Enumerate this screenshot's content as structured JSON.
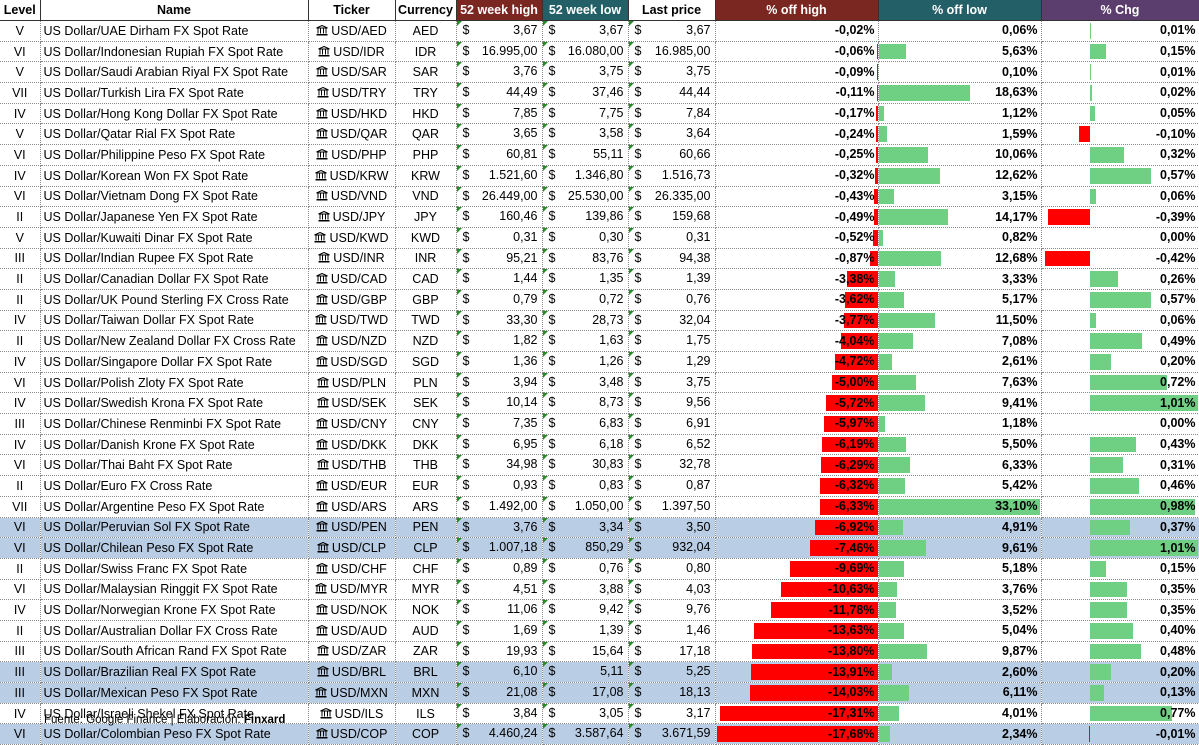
{
  "headers": {
    "level": "Level",
    "name": "Name",
    "ticker": "Ticker",
    "currency": "Currency",
    "high": "52 week high",
    "low": "52 week low",
    "last": "Last price",
    "off_high": "% off high",
    "off_low": "% off low",
    "chg": "% Chg"
  },
  "currency_symbol": "$",
  "ticker_icon": "bank-building-icon",
  "colors": {
    "negative": "#ff0000",
    "positive": "#6fcf83",
    "highlight_row": "#b9cde5"
  },
  "scales": {
    "off_high_max": 17.68,
    "off_low_max": 33.1,
    "chg_max": 1.01
  },
  "rows": [
    {
      "level": "V",
      "name": "US Dollar/UAE Dirham FX Spot Rate",
      "ticker": "USD/AED",
      "currency": "AED",
      "high": "3,67",
      "low": "3,67",
      "last": "3,67",
      "off_high": "-0,02%",
      "off_low": "0,06%",
      "chg": "0,01%",
      "hl": false
    },
    {
      "level": "VI",
      "name": "US Dollar/Indonesian Rupiah FX Spot Rate",
      "ticker": "USD/IDR",
      "currency": "IDR",
      "high": "16.995,00",
      "low": "16.080,00",
      "last": "16.985,00",
      "off_high": "-0,06%",
      "off_low": "5,63%",
      "chg": "0,15%",
      "hl": false
    },
    {
      "level": "V",
      "name": "US Dollar/Saudi Arabian Riyal FX Spot Rate",
      "ticker": "USD/SAR",
      "currency": "SAR",
      "high": "3,76",
      "low": "3,75",
      "last": "3,75",
      "off_high": "-0,09%",
      "off_low": "0,10%",
      "chg": "0,01%",
      "hl": false
    },
    {
      "level": "VII",
      "name": "US Dollar/Turkish Lira FX Spot Rate",
      "ticker": "USD/TRY",
      "currency": "TRY",
      "high": "44,49",
      "low": "37,46",
      "last": "44,44",
      "off_high": "-0,11%",
      "off_low": "18,63%",
      "chg": "0,02%",
      "hl": false
    },
    {
      "level": "IV",
      "name": "US Dollar/Hong Kong Dollar FX Spot Rate",
      "ticker": "USD/HKD",
      "currency": "HKD",
      "high": "7,85",
      "low": "7,75",
      "last": "7,84",
      "off_high": "-0,17%",
      "off_low": "1,12%",
      "chg": "0,05%",
      "hl": false
    },
    {
      "level": "V",
      "name": "US Dollar/Qatar Rial FX Spot Rate",
      "ticker": "USD/QAR",
      "currency": "QAR",
      "high": "3,65",
      "low": "3,58",
      "last": "3,64",
      "off_high": "-0,24%",
      "off_low": "1,59%",
      "chg": "-0,10%",
      "hl": false
    },
    {
      "level": "VI",
      "name": "US Dollar/Philippine Peso FX Spot Rate",
      "ticker": "USD/PHP",
      "currency": "PHP",
      "high": "60,81",
      "low": "55,11",
      "last": "60,66",
      "off_high": "-0,25%",
      "off_low": "10,06%",
      "chg": "0,32%",
      "hl": false
    },
    {
      "level": "IV",
      "name": "US Dollar/Korean Won FX Spot Rate",
      "ticker": "USD/KRW",
      "currency": "KRW",
      "high": "1.521,60",
      "low": "1.346,80",
      "last": "1.516,73",
      "off_high": "-0,32%",
      "off_low": "12,62%",
      "chg": "0,57%",
      "hl": false
    },
    {
      "level": "VI",
      "name": "US Dollar/Vietnam Dong FX Spot Rate",
      "ticker": "USD/VND",
      "currency": "VND",
      "high": "26.449,00",
      "low": "25.530,00",
      "last": "26.335,00",
      "off_high": "-0,43%",
      "off_low": "3,15%",
      "chg": "0,06%",
      "hl": false
    },
    {
      "level": "II",
      "name": "US Dollar/Japanese Yen FX Spot Rate",
      "ticker": "USD/JPY",
      "currency": "JPY",
      "high": "160,46",
      "low": "139,86",
      "last": "159,68",
      "off_high": "-0,49%",
      "off_low": "14,17%",
      "chg": "-0,39%",
      "hl": false
    },
    {
      "level": "V",
      "name": "US Dollar/Kuwaiti Dinar FX Spot Rate",
      "ticker": "USD/KWD",
      "currency": "KWD",
      "high": "0,31",
      "low": "0,30",
      "last": "0,31",
      "off_high": "-0,52%",
      "off_low": "0,82%",
      "chg": "0,00%",
      "hl": false
    },
    {
      "level": "III",
      "name": "US Dollar/Indian Rupee FX Spot Rate",
      "ticker": "USD/INR",
      "currency": "INR",
      "high": "95,21",
      "low": "83,76",
      "last": "94,38",
      "off_high": "-0,87%",
      "off_low": "12,68%",
      "chg": "-0,42%",
      "hl": false
    },
    {
      "level": "II",
      "name": "US Dollar/Canadian Dollar FX Spot Rate",
      "ticker": "USD/CAD",
      "currency": "CAD",
      "high": "1,44",
      "low": "1,35",
      "last": "1,39",
      "off_high": "-3,38%",
      "off_low": "3,33%",
      "chg": "0,26%",
      "hl": false
    },
    {
      "level": "II",
      "name": "US Dollar/UK Pound Sterling FX Cross Rate",
      "ticker": "USD/GBP",
      "currency": "GBP",
      "high": "0,79",
      "low": "0,72",
      "last": "0,76",
      "off_high": "-3,62%",
      "off_low": "5,17%",
      "chg": "0,57%",
      "hl": false
    },
    {
      "level": "IV",
      "name": "US Dollar/Taiwan Dollar FX Spot Rate",
      "ticker": "USD/TWD",
      "currency": "TWD",
      "high": "33,30",
      "low": "28,73",
      "last": "32,04",
      "off_high": "-3,77%",
      "off_low": "11,50%",
      "chg": "0,06%",
      "hl": false
    },
    {
      "level": "II",
      "name": "US Dollar/New Zealand Dollar FX Cross Rate",
      "ticker": "USD/NZD",
      "currency": "NZD",
      "high": "1,82",
      "low": "1,63",
      "last": "1,75",
      "off_high": "-4,04%",
      "off_low": "7,08%",
      "chg": "0,49%",
      "hl": false
    },
    {
      "level": "IV",
      "name": "US Dollar/Singapore Dollar FX Spot Rate",
      "ticker": "USD/SGD",
      "currency": "SGD",
      "high": "1,36",
      "low": "1,26",
      "last": "1,29",
      "off_high": "-4,72%",
      "off_low": "2,61%",
      "chg": "0,20%",
      "hl": false
    },
    {
      "level": "VI",
      "name": "US Dollar/Polish Zloty FX Spot Rate",
      "ticker": "USD/PLN",
      "currency": "PLN",
      "high": "3,94",
      "low": "3,48",
      "last": "3,75",
      "off_high": "-5,00%",
      "off_low": "7,63%",
      "chg": "0,72%",
      "hl": false
    },
    {
      "level": "IV",
      "name": "US Dollar/Swedish Krona FX Spot Rate",
      "ticker": "USD/SEK",
      "currency": "SEK",
      "high": "10,14",
      "low": "8,73",
      "last": "9,56",
      "off_high": "-5,72%",
      "off_low": "9,41%",
      "chg": "1,01%",
      "hl": false
    },
    {
      "level": "III",
      "name": "US Dollar/Chinese Renminbi FX Spot Rate",
      "ticker": "USD/CNY",
      "currency": "CNY",
      "high": "7,35",
      "low": "6,83",
      "last": "6,91",
      "off_high": "-5,97%",
      "off_low": "1,18%",
      "chg": "0,00%",
      "hl": false
    },
    {
      "level": "IV",
      "name": "US Dollar/Danish Krone FX Spot Rate",
      "ticker": "USD/DKK",
      "currency": "DKK",
      "high": "6,95",
      "low": "6,18",
      "last": "6,52",
      "off_high": "-6,19%",
      "off_low": "5,50%",
      "chg": "0,43%",
      "hl": false
    },
    {
      "level": "VI",
      "name": "US Dollar/Thai Baht FX Spot Rate",
      "ticker": "USD/THB",
      "currency": "THB",
      "high": "34,98",
      "low": "30,83",
      "last": "32,78",
      "off_high": "-6,29%",
      "off_low": "6,33%",
      "chg": "0,31%",
      "hl": false
    },
    {
      "level": "II",
      "name": "US Dollar/Euro FX Cross Rate",
      "ticker": "USD/EUR",
      "currency": "EUR",
      "high": "0,93",
      "low": "0,83",
      "last": "0,87",
      "off_high": "-6,32%",
      "off_low": "5,42%",
      "chg": "0,46%",
      "hl": false
    },
    {
      "level": "VII",
      "name": "US Dollar/Argentine Peso FX Spot Rate",
      "ticker": "USD/ARS",
      "currency": "ARS",
      "high": "1.492,00",
      "low": "1.050,00",
      "last": "1.397,50",
      "off_high": "-6,33%",
      "off_low": "33,10%",
      "chg": "0,98%",
      "hl": false
    },
    {
      "level": "VI",
      "name": "US Dollar/Peruvian Sol FX Spot Rate",
      "ticker": "USD/PEN",
      "currency": "PEN",
      "high": "3,76",
      "low": "3,34",
      "last": "3,50",
      "off_high": "-6,92%",
      "off_low": "4,91%",
      "chg": "0,37%",
      "hl": true
    },
    {
      "level": "VI",
      "name": "US Dollar/Chilean Peso FX Spot Rate",
      "ticker": "USD/CLP",
      "currency": "CLP",
      "high": "1.007,18",
      "low": "850,29",
      "last": "932,04",
      "off_high": "-7,46%",
      "off_low": "9,61%",
      "chg": "1,01%",
      "hl": true
    },
    {
      "level": "II",
      "name": "US Dollar/Swiss Franc FX Spot Rate",
      "ticker": "USD/CHF",
      "currency": "CHF",
      "high": "0,89",
      "low": "0,76",
      "last": "0,80",
      "off_high": "-9,69%",
      "off_low": "5,18%",
      "chg": "0,15%",
      "hl": false
    },
    {
      "level": "VI",
      "name": "US Dollar/Malaysian Ringgit FX Spot Rate",
      "ticker": "USD/MYR",
      "currency": "MYR",
      "high": "4,51",
      "low": "3,88",
      "last": "4,03",
      "off_high": "-10,63%",
      "off_low": "3,76%",
      "chg": "0,35%",
      "hl": false
    },
    {
      "level": "IV",
      "name": "US Dollar/Norwegian Krone FX Spot Rate",
      "ticker": "USD/NOK",
      "currency": "NOK",
      "high": "11,06",
      "low": "9,42",
      "last": "9,76",
      "off_high": "-11,78%",
      "off_low": "3,52%",
      "chg": "0,35%",
      "hl": false
    },
    {
      "level": "II",
      "name": "US Dollar/Australian Dollar FX Cross Rate",
      "ticker": "USD/AUD",
      "currency": "AUD",
      "high": "1,69",
      "low": "1,39",
      "last": "1,46",
      "off_high": "-13,63%",
      "off_low": "5,04%",
      "chg": "0,40%",
      "hl": false
    },
    {
      "level": "III",
      "name": "US Dollar/South African Rand FX Spot Rate",
      "ticker": "USD/ZAR",
      "currency": "ZAR",
      "high": "19,93",
      "low": "15,64",
      "last": "17,18",
      "off_high": "-13,80%",
      "off_low": "9,87%",
      "chg": "0,48%",
      "hl": false
    },
    {
      "level": "III",
      "name": "US Dollar/Brazilian Real FX Spot Rate",
      "ticker": "USD/BRL",
      "currency": "BRL",
      "high": "6,10",
      "low": "5,11",
      "last": "5,25",
      "off_high": "-13,91%",
      "off_low": "2,60%",
      "chg": "0,20%",
      "hl": true
    },
    {
      "level": "III",
      "name": "US Dollar/Mexican Peso FX Spot Rate",
      "ticker": "USD/MXN",
      "currency": "MXN",
      "high": "21,08",
      "low": "17,08",
      "last": "18,13",
      "off_high": "-14,03%",
      "off_low": "6,11%",
      "chg": "0,13%",
      "hl": true
    },
    {
      "level": "IV",
      "name": "US Dollar/Israeli Shekel FX Spot Rate",
      "ticker": "USD/ILS",
      "currency": "ILS",
      "high": "3,84",
      "low": "3,05",
      "last": "3,17",
      "off_high": "-17,31%",
      "off_low": "4,01%",
      "chg": "0,77%",
      "hl": false
    },
    {
      "level": "VI",
      "name": "US Dollar/Colombian Peso FX Spot Rate",
      "ticker": "USD/COP",
      "currency": "COP",
      "high": "4.460,24",
      "low": "3.587,64",
      "last": "3.671,59",
      "off_high": "-17,68%",
      "off_low": "2,34%",
      "chg": "-0,01%",
      "hl": true
    }
  ],
  "footer": {
    "source": "Fuente: Google Finance | Elaboración: ",
    "brand": "Finxard"
  }
}
